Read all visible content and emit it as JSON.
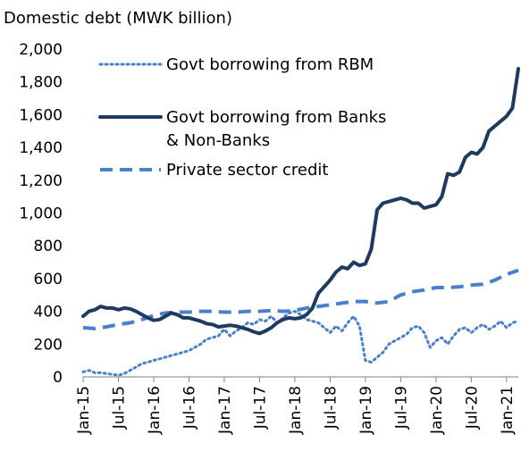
{
  "chart_data": {
    "type": "line",
    "subtitle": "Domestic debt (MWK billion)",
    "ylim": [
      0,
      2000
    ],
    "yticks": [
      "0",
      "200",
      "400",
      "600",
      "800",
      "1,000",
      "1,200",
      "1,400",
      "1,600",
      "1,800",
      "2,000"
    ],
    "ytick_values": [
      0,
      200,
      400,
      600,
      800,
      1000,
      1200,
      1400,
      1600,
      1800,
      2000
    ],
    "xticks": [
      "Jan-15",
      "Jul-15",
      "Jan-16",
      "Jul-16",
      "Jan-17",
      "Jul-17",
      "Jan-18",
      "Jul-18",
      "Jan-19",
      "Jul-19",
      "Jan-20",
      "Jul-20",
      "Jan-21"
    ],
    "xtick_months": [
      0,
      6,
      12,
      18,
      24,
      30,
      36,
      42,
      48,
      54,
      60,
      66,
      72
    ],
    "x_month_max": 74,
    "legend_position": "top-left",
    "grid": false,
    "series": [
      {
        "name": "Govt borrowing from RBM",
        "style": "dotted",
        "color": "#4a7fc9",
        "values": [
          [
            0,
            30
          ],
          [
            1,
            40
          ],
          [
            2,
            25
          ],
          [
            3,
            25
          ],
          [
            4,
            20
          ],
          [
            5,
            15
          ],
          [
            6,
            10
          ],
          [
            7,
            20
          ],
          [
            8,
            40
          ],
          [
            9,
            60
          ],
          [
            10,
            80
          ],
          [
            11,
            90
          ],
          [
            12,
            100
          ],
          [
            13,
            110
          ],
          [
            14,
            120
          ],
          [
            15,
            130
          ],
          [
            16,
            140
          ],
          [
            17,
            150
          ],
          [
            18,
            160
          ],
          [
            19,
            180
          ],
          [
            20,
            200
          ],
          [
            21,
            230
          ],
          [
            22,
            240
          ],
          [
            23,
            250
          ],
          [
            24,
            290
          ],
          [
            25,
            250
          ],
          [
            26,
            280
          ],
          [
            27,
            300
          ],
          [
            28,
            330
          ],
          [
            29,
            320
          ],
          [
            30,
            350
          ],
          [
            31,
            340
          ],
          [
            32,
            370
          ],
          [
            33,
            330
          ],
          [
            34,
            360
          ],
          [
            35,
            390
          ],
          [
            36,
            400
          ],
          [
            37,
            380
          ],
          [
            38,
            350
          ],
          [
            39,
            340
          ],
          [
            40,
            330
          ],
          [
            41,
            300
          ],
          [
            42,
            270
          ],
          [
            43,
            310
          ],
          [
            44,
            280
          ],
          [
            45,
            330
          ],
          [
            46,
            370
          ],
          [
            47,
            310
          ],
          [
            48,
            100
          ],
          [
            49,
            90
          ],
          [
            50,
            120
          ],
          [
            51,
            150
          ],
          [
            52,
            200
          ],
          [
            53,
            220
          ],
          [
            54,
            240
          ],
          [
            55,
            260
          ],
          [
            56,
            300
          ],
          [
            57,
            310
          ],
          [
            58,
            270
          ],
          [
            59,
            180
          ],
          [
            60,
            220
          ],
          [
            61,
            240
          ],
          [
            62,
            200
          ],
          [
            63,
            250
          ],
          [
            64,
            290
          ],
          [
            65,
            300
          ],
          [
            66,
            270
          ],
          [
            67,
            300
          ],
          [
            68,
            320
          ],
          [
            69,
            290
          ],
          [
            70,
            310
          ],
          [
            71,
            340
          ],
          [
            72,
            300
          ],
          [
            73,
            330
          ],
          [
            74,
            340
          ]
        ]
      },
      {
        "name": "Govt borrowing from Banks & Non-Banks",
        "style": "solid",
        "color": "#1f3a5f",
        "values": [
          [
            0,
            370
          ],
          [
            1,
            400
          ],
          [
            2,
            410
          ],
          [
            3,
            430
          ],
          [
            4,
            420
          ],
          [
            5,
            420
          ],
          [
            6,
            410
          ],
          [
            7,
            420
          ],
          [
            8,
            415
          ],
          [
            9,
            400
          ],
          [
            10,
            380
          ],
          [
            11,
            360
          ],
          [
            12,
            345
          ],
          [
            13,
            350
          ],
          [
            14,
            370
          ],
          [
            15,
            390
          ],
          [
            16,
            380
          ],
          [
            17,
            360
          ],
          [
            18,
            360
          ],
          [
            19,
            350
          ],
          [
            20,
            340
          ],
          [
            21,
            325
          ],
          [
            22,
            320
          ],
          [
            23,
            305
          ],
          [
            24,
            310
          ],
          [
            25,
            315
          ],
          [
            26,
            310
          ],
          [
            27,
            300
          ],
          [
            28,
            290
          ],
          [
            29,
            275
          ],
          [
            30,
            265
          ],
          [
            31,
            280
          ],
          [
            32,
            300
          ],
          [
            33,
            330
          ],
          [
            34,
            350
          ],
          [
            35,
            360
          ],
          [
            36,
            355
          ],
          [
            37,
            360
          ],
          [
            38,
            380
          ],
          [
            39,
            420
          ],
          [
            40,
            510
          ],
          [
            41,
            550
          ],
          [
            42,
            590
          ],
          [
            43,
            640
          ],
          [
            44,
            670
          ],
          [
            45,
            660
          ],
          [
            46,
            700
          ],
          [
            47,
            680
          ],
          [
            48,
            690
          ],
          [
            49,
            780
          ],
          [
            50,
            1020
          ],
          [
            51,
            1060
          ],
          [
            52,
            1070
          ],
          [
            53,
            1080
          ],
          [
            54,
            1090
          ],
          [
            55,
            1080
          ],
          [
            56,
            1060
          ],
          [
            57,
            1060
          ],
          [
            58,
            1030
          ],
          [
            59,
            1040
          ],
          [
            60,
            1050
          ],
          [
            61,
            1100
          ],
          [
            62,
            1240
          ],
          [
            63,
            1230
          ],
          [
            64,
            1250
          ],
          [
            65,
            1340
          ],
          [
            66,
            1370
          ],
          [
            67,
            1360
          ],
          [
            68,
            1400
          ],
          [
            69,
            1500
          ],
          [
            70,
            1530
          ],
          [
            71,
            1560
          ],
          [
            72,
            1590
          ],
          [
            73,
            1640
          ],
          [
            74,
            1880
          ]
        ]
      },
      {
        "name": "Private sector credit",
        "style": "dashed",
        "color": "#4a7fc9",
        "values": [
          [
            0,
            300
          ],
          [
            2,
            295
          ],
          [
            4,
            305
          ],
          [
            6,
            320
          ],
          [
            8,
            330
          ],
          [
            10,
            350
          ],
          [
            12,
            375
          ],
          [
            14,
            390
          ],
          [
            16,
            395
          ],
          [
            18,
            395
          ],
          [
            20,
            400
          ],
          [
            22,
            400
          ],
          [
            24,
            395
          ],
          [
            26,
            395
          ],
          [
            28,
            400
          ],
          [
            30,
            400
          ],
          [
            32,
            405
          ],
          [
            34,
            400
          ],
          [
            36,
            405
          ],
          [
            38,
            420
          ],
          [
            40,
            430
          ],
          [
            42,
            440
          ],
          [
            44,
            450
          ],
          [
            46,
            460
          ],
          [
            48,
            460
          ],
          [
            50,
            450
          ],
          [
            52,
            460
          ],
          [
            54,
            500
          ],
          [
            56,
            520
          ],
          [
            58,
            530
          ],
          [
            60,
            545
          ],
          [
            62,
            545
          ],
          [
            64,
            550
          ],
          [
            66,
            560
          ],
          [
            68,
            565
          ],
          [
            70,
            590
          ],
          [
            72,
            625
          ],
          [
            74,
            650
          ]
        ]
      }
    ]
  }
}
